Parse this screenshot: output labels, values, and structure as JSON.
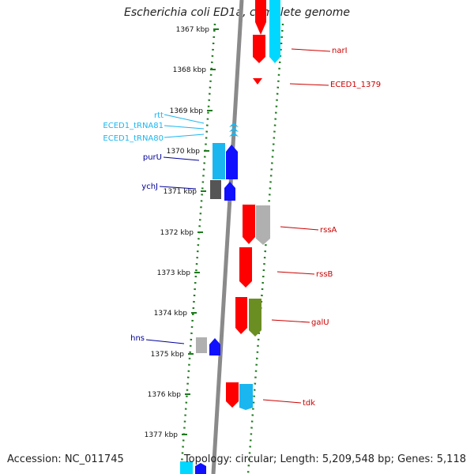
{
  "title": "Escherichia coli ED1a, complete genome",
  "footer": {
    "accession": "Accession: NC_011745",
    "summary": "Topology: circular; Length: 5,209,548 bp; Genes: 5,118"
  },
  "colors": {
    "backbone": "#8a8a8a",
    "tick_ring": "#1f7a1f",
    "red": "#ff0000",
    "cyan": "#00d8ff",
    "blue": "#1010ff",
    "light_blue": "#1ab6f0",
    "gray": "#b0b0b0",
    "dark_gray": "#555555",
    "olive": "#6b8e23",
    "label_red": "#cc0000",
    "label_blue": "#000099",
    "label_cyan": "#1ab6f0"
  },
  "ruler": {
    "unit": "kbp",
    "ticks": [
      1367,
      1368,
      1369,
      1370,
      1371,
      1372,
      1373,
      1374,
      1375,
      1376,
      1377
    ]
  },
  "features": [
    {
      "label": "narI",
      "color_key": "red",
      "strand": "+"
    },
    {
      "label": "ECED1_1379",
      "color_key": "red",
      "strand": "+"
    },
    {
      "label": "rtt",
      "color_key": "light_blue",
      "strand": "-"
    },
    {
      "label": "ECED1_tRNA81",
      "color_key": "light_blue",
      "strand": "-"
    },
    {
      "label": "ECED1_tRNA80",
      "color_key": "light_blue",
      "strand": "-"
    },
    {
      "label": "purU",
      "color_key": "blue",
      "strand": "-"
    },
    {
      "label": "ychJ",
      "color_key": "blue",
      "strand": "-"
    },
    {
      "label": "rssA",
      "color_key": "red",
      "strand": "+"
    },
    {
      "label": "rssB",
      "color_key": "red",
      "strand": "+"
    },
    {
      "label": "galU",
      "color_key": "red",
      "strand": "+"
    },
    {
      "label": "hns",
      "color_key": "blue",
      "strand": "-"
    },
    {
      "label": "tdk",
      "color_key": "red",
      "strand": "+"
    }
  ]
}
